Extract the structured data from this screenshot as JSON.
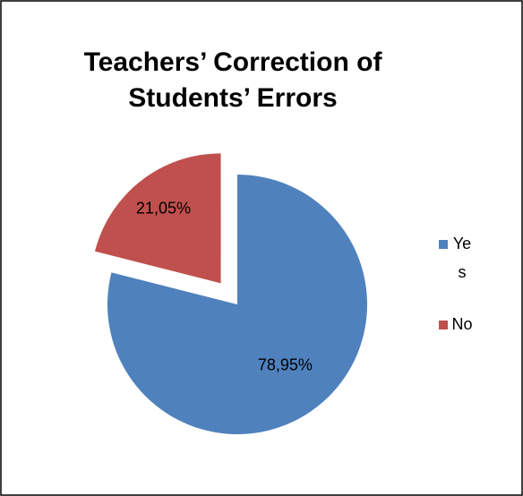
{
  "chart_data": {
    "type": "pie",
    "title": "Teachers’ Correction of Students’ Errors",
    "categories": [
      "Yes",
      "No"
    ],
    "values": [
      78.95,
      21.05
    ],
    "value_labels": [
      "78,95%",
      "21,05%"
    ],
    "colors": [
      "#4f81bd",
      "#c0504d"
    ],
    "legend": "right"
  }
}
